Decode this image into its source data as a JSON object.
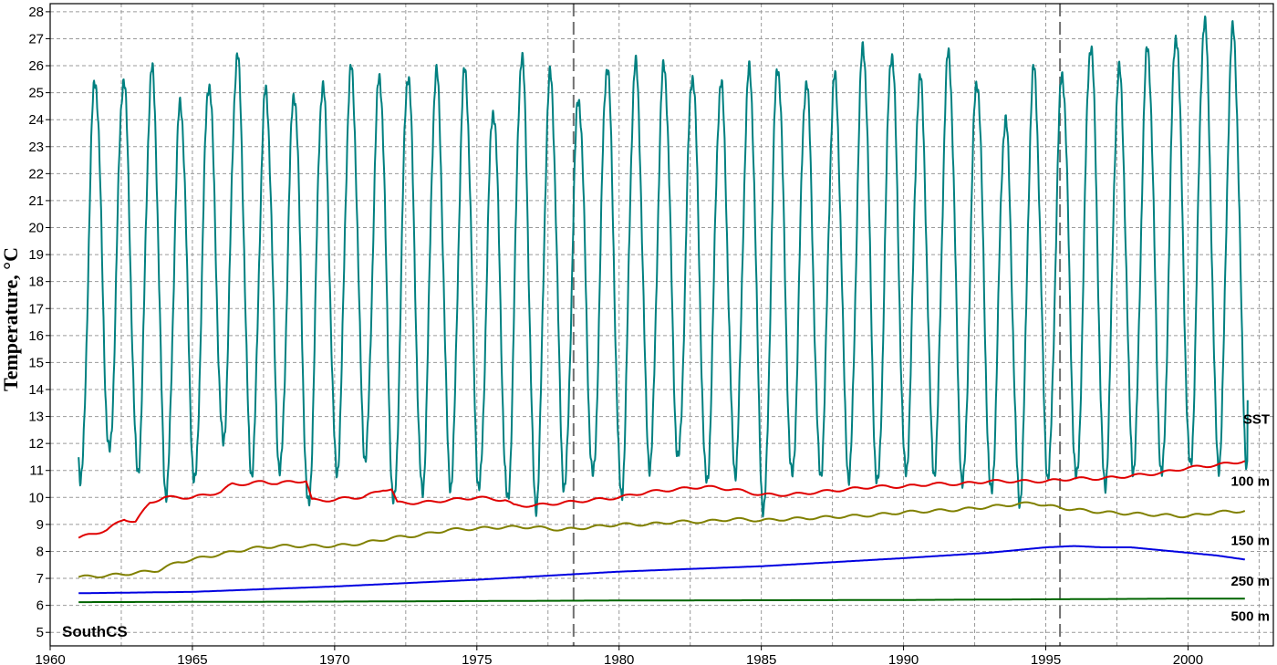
{
  "chart_data": {
    "type": "line",
    "ylabel": "Temperature, °C",
    "xlabel": "",
    "xlim": [
      1960,
      2003
    ],
    "ylim": [
      4.5,
      28.3
    ],
    "x_ticks": [
      1960,
      1965,
      1970,
      1975,
      1980,
      1985,
      1990,
      1995,
      2000
    ],
    "y_ticks": [
      5,
      6,
      7,
      8,
      9,
      10,
      11,
      12,
      13,
      14,
      15,
      16,
      17,
      18,
      19,
      20,
      21,
      22,
      23,
      24,
      25,
      26,
      27,
      28
    ],
    "grid": true,
    "station_label": "SouthCS",
    "vertical_markers": [
      1978.4,
      1995.5
    ],
    "series": [
      {
        "name": "SST",
        "color": "#008080",
        "kind": "seasonal",
        "start": 1961.0,
        "end": 2002.1,
        "annual_max": [
          [
            1961,
            25.5
          ],
          [
            1962,
            25.5
          ],
          [
            1963,
            25.8
          ],
          [
            1964,
            24.6
          ],
          [
            1965,
            25.4
          ],
          [
            1966,
            26.3
          ],
          [
            1967,
            25.0
          ],
          [
            1968,
            25.0
          ],
          [
            1969,
            25.3
          ],
          [
            1970,
            25.8
          ],
          [
            1971,
            25.6
          ],
          [
            1972,
            25.7
          ],
          [
            1973,
            25.7
          ],
          [
            1974,
            25.8
          ],
          [
            1975,
            24.4
          ],
          [
            1976,
            26.3
          ],
          [
            1977,
            25.6
          ],
          [
            1978,
            24.8
          ],
          [
            1979,
            26.0
          ],
          [
            1980,
            26.0
          ],
          [
            1981,
            26.0
          ],
          [
            1982,
            25.7
          ],
          [
            1983,
            25.3
          ],
          [
            1984,
            25.8
          ],
          [
            1985,
            26.0
          ],
          [
            1986,
            25.4
          ],
          [
            1987,
            25.5
          ],
          [
            1988,
            26.7
          ],
          [
            1989,
            26.5
          ],
          [
            1990,
            25.5
          ],
          [
            1991,
            26.4
          ],
          [
            1992,
            25.5
          ],
          [
            1993,
            24.0
          ],
          [
            1994,
            25.8
          ],
          [
            1995,
            25.7
          ],
          [
            1996,
            26.8
          ],
          [
            1997,
            25.8
          ],
          [
            1998,
            26.6
          ],
          [
            1999,
            27.2
          ],
          [
            2000,
            27.6
          ],
          [
            2001,
            27.3
          ],
          [
            2002,
            26.3
          ]
        ],
        "annual_min": [
          [
            1961,
            10.7
          ],
          [
            1962,
            11.6
          ],
          [
            1963,
            11.0
          ],
          [
            1964,
            10.2
          ],
          [
            1965,
            10.5
          ],
          [
            1966,
            12.0
          ],
          [
            1967,
            11.0
          ],
          [
            1968,
            11.0
          ],
          [
            1969,
            9.6
          ],
          [
            1970,
            11.0
          ],
          [
            1971,
            11.5
          ],
          [
            1972,
            9.7
          ],
          [
            1973,
            10.2
          ],
          [
            1974,
            10.5
          ],
          [
            1975,
            10.3
          ],
          [
            1976,
            9.8
          ],
          [
            1977,
            9.7
          ],
          [
            1978,
            10.4
          ],
          [
            1979,
            10.7
          ],
          [
            1980,
            10.1
          ],
          [
            1981,
            11.2
          ],
          [
            1982,
            11.4
          ],
          [
            1983,
            10.5
          ],
          [
            1984,
            11.0
          ],
          [
            1985,
            9.5
          ],
          [
            1986,
            10.7
          ],
          [
            1987,
            10.9
          ],
          [
            1988,
            10.8
          ],
          [
            1989,
            10.4
          ],
          [
            1990,
            10.9
          ],
          [
            1991,
            11.0
          ],
          [
            1992,
            10.5
          ],
          [
            1993,
            10.1
          ],
          [
            1994,
            9.9
          ],
          [
            1995,
            10.8
          ],
          [
            1996,
            10.6
          ],
          [
            1997,
            10.4
          ],
          [
            1998,
            11.1
          ],
          [
            1999,
            10.8
          ],
          [
            2000,
            11.1
          ],
          [
            2001,
            11.2
          ]
        ],
        "end_value": 13.6
      },
      {
        "name": "100 m",
        "color": "#e00000",
        "kind": "points",
        "points": [
          [
            1961.0,
            8.5
          ],
          [
            1962.0,
            8.8
          ],
          [
            1962.6,
            9.2
          ],
          [
            1963.0,
            9.1
          ],
          [
            1963.5,
            9.8
          ],
          [
            1964.0,
            10.0
          ],
          [
            1964.5,
            10.0
          ],
          [
            1965.0,
            10.0
          ],
          [
            1965.5,
            10.1
          ],
          [
            1966.0,
            10.2
          ],
          [
            1966.4,
            10.5
          ],
          [
            1967.0,
            10.5
          ],
          [
            1967.5,
            10.6
          ],
          [
            1968.0,
            10.5
          ],
          [
            1968.5,
            10.6
          ],
          [
            1969.0,
            10.6
          ],
          [
            1969.2,
            9.9
          ],
          [
            1970.0,
            9.9
          ],
          [
            1970.5,
            10.0
          ],
          [
            1971.0,
            10.0
          ],
          [
            1971.7,
            10.3
          ],
          [
            1972.0,
            10.3
          ],
          [
            1972.2,
            9.8
          ],
          [
            1973.0,
            9.8
          ],
          [
            1974.0,
            9.9
          ],
          [
            1975.0,
            10.0
          ],
          [
            1976.0,
            9.9
          ],
          [
            1976.3,
            9.7
          ],
          [
            1977.0,
            9.7
          ],
          [
            1978.0,
            9.8
          ],
          [
            1979.0,
            9.9
          ],
          [
            1980.0,
            10.0
          ],
          [
            1981.0,
            10.2
          ],
          [
            1982.0,
            10.3
          ],
          [
            1983.0,
            10.4
          ],
          [
            1984.0,
            10.3
          ],
          [
            1985.0,
            10.1
          ],
          [
            1986.0,
            10.1
          ],
          [
            1987.0,
            10.2
          ],
          [
            1988.0,
            10.3
          ],
          [
            1989.0,
            10.4
          ],
          [
            1990.0,
            10.4
          ],
          [
            1991.0,
            10.5
          ],
          [
            1992.0,
            10.5
          ],
          [
            1993.0,
            10.6
          ],
          [
            1994.0,
            10.6
          ],
          [
            1995.0,
            10.6
          ],
          [
            1996.0,
            10.7
          ],
          [
            1997.0,
            10.7
          ],
          [
            1998.0,
            10.8
          ],
          [
            1999.0,
            10.9
          ],
          [
            2000.0,
            11.1
          ],
          [
            2001.0,
            11.2
          ],
          [
            2002.0,
            11.35
          ]
        ]
      },
      {
        "name": "150 m",
        "color": "#808000",
        "kind": "points",
        "points": [
          [
            1961.0,
            7.05
          ],
          [
            1962.0,
            7.1
          ],
          [
            1963.0,
            7.2
          ],
          [
            1963.8,
            7.3
          ],
          [
            1964.5,
            7.6
          ],
          [
            1965.0,
            7.7
          ],
          [
            1966.0,
            7.9
          ],
          [
            1967.0,
            8.1
          ],
          [
            1968.0,
            8.2
          ],
          [
            1969.0,
            8.2
          ],
          [
            1970.0,
            8.2
          ],
          [
            1971.0,
            8.3
          ],
          [
            1972.0,
            8.5
          ],
          [
            1973.0,
            8.6
          ],
          [
            1974.0,
            8.8
          ],
          [
            1975.0,
            8.85
          ],
          [
            1976.0,
            8.9
          ],
          [
            1977.0,
            8.9
          ],
          [
            1978.0,
            8.8
          ],
          [
            1979.0,
            8.9
          ],
          [
            1980.0,
            9.0
          ],
          [
            1981.0,
            9.0
          ],
          [
            1982.0,
            9.1
          ],
          [
            1983.0,
            9.1
          ],
          [
            1984.0,
            9.2
          ],
          [
            1985.0,
            9.15
          ],
          [
            1986.0,
            9.2
          ],
          [
            1987.0,
            9.25
          ],
          [
            1988.0,
            9.3
          ],
          [
            1989.0,
            9.35
          ],
          [
            1990.0,
            9.45
          ],
          [
            1991.0,
            9.5
          ],
          [
            1992.0,
            9.55
          ],
          [
            1993.0,
            9.65
          ],
          [
            1994.0,
            9.75
          ],
          [
            1994.6,
            9.8
          ],
          [
            1995.0,
            9.7
          ],
          [
            1996.0,
            9.55
          ],
          [
            1997.0,
            9.45
          ],
          [
            1998.0,
            9.4
          ],
          [
            1999.0,
            9.35
          ],
          [
            2000.0,
            9.3
          ],
          [
            2001.0,
            9.45
          ],
          [
            2002.0,
            9.5
          ]
        ]
      },
      {
        "name": "250 m",
        "color": "#0000e0",
        "kind": "points",
        "points": [
          [
            1961.0,
            6.45
          ],
          [
            1965.0,
            6.5
          ],
          [
            1970.0,
            6.7
          ],
          [
            1975.0,
            6.95
          ],
          [
            1980.0,
            7.25
          ],
          [
            1985.0,
            7.45
          ],
          [
            1990.0,
            7.75
          ],
          [
            1993.0,
            7.95
          ],
          [
            1995.0,
            8.15
          ],
          [
            1996.0,
            8.2
          ],
          [
            1997.0,
            8.15
          ],
          [
            1998.0,
            8.15
          ],
          [
            1999.0,
            8.05
          ],
          [
            2000.0,
            7.95
          ],
          [
            2001.0,
            7.85
          ],
          [
            2002.0,
            7.7
          ]
        ]
      },
      {
        "name": "500 m",
        "color": "#006400",
        "kind": "points",
        "points": [
          [
            1961.0,
            6.12
          ],
          [
            1970.0,
            6.14
          ],
          [
            1980.0,
            6.18
          ],
          [
            1990.0,
            6.2
          ],
          [
            2000.0,
            6.25
          ],
          [
            2002.0,
            6.25
          ]
        ]
      }
    ],
    "series_labels": [
      {
        "text": "SST",
        "y": 12.9
      },
      {
        "text": "100 m",
        "y": 10.6
      },
      {
        "text": "150 m",
        "y": 8.4
      },
      {
        "text": "250 m",
        "y": 6.9
      },
      {
        "text": "500 m",
        "y": 5.6
      }
    ]
  }
}
